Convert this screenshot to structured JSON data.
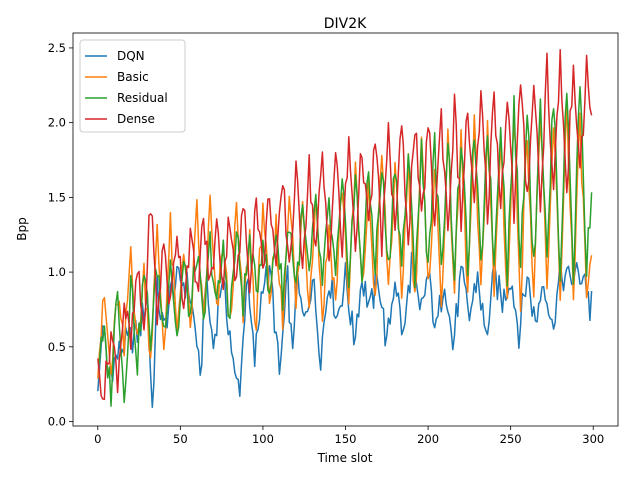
{
  "chart_data": {
    "type": "line",
    "title": "DIV2K",
    "xlabel": "Time slot",
    "ylabel": "Bpp",
    "xlim": [
      -15,
      315
    ],
    "ylim": [
      -0.03,
      2.6
    ],
    "xticks": [
      0,
      50,
      100,
      150,
      200,
      250,
      300
    ],
    "yticks": [
      0.0,
      0.5,
      1.0,
      1.5,
      2.0,
      2.5
    ],
    "xtick_labels": [
      "0",
      "50",
      "100",
      "150",
      "200",
      "250",
      "300"
    ],
    "ytick_labels": [
      "0.0",
      "0.5",
      "1.0",
      "1.5",
      "2.0",
      "2.5"
    ],
    "grid": false,
    "legend_position": "top-left",
    "points_per_series": 300,
    "series": [
      {
        "name": "DQN",
        "color": "#1f77b4",
        "x": [
          0,
          3,
          6,
          10,
          15,
          20,
          25,
          30,
          33,
          36,
          40,
          45,
          50,
          55,
          60,
          62,
          65,
          70,
          75,
          80,
          83,
          86,
          88,
          90,
          95,
          100,
          105,
          110,
          115,
          118,
          120,
          125,
          130,
          135,
          140,
          145,
          150,
          155,
          160,
          165,
          170,
          175,
          180,
          185,
          190,
          195,
          200,
          205,
          210,
          215,
          220,
          225,
          230,
          235,
          240,
          245,
          250,
          255,
          260,
          265,
          270,
          275,
          280,
          285,
          290,
          295,
          298,
          300
        ],
        "y": [
          0.15,
          0.69,
          0.3,
          0.4,
          0.5,
          0.55,
          0.6,
          0.85,
          0.08,
          0.87,
          0.6,
          0.9,
          0.95,
          0.9,
          0.55,
          0.21,
          0.96,
          0.5,
          0.96,
          0.6,
          0.27,
          0.25,
          0.54,
          0.97,
          0.4,
          0.96,
          0.95,
          0.3,
          0.95,
          0.4,
          0.96,
          0.65,
          0.97,
          0.45,
          0.97,
          0.7,
          0.97,
          0.55,
          0.96,
          0.75,
          0.97,
          0.5,
          0.98,
          0.55,
          1.07,
          0.7,
          0.98,
          0.6,
          0.98,
          0.5,
          0.98,
          0.7,
          0.98,
          0.55,
          0.98,
          0.8,
          0.98,
          0.6,
          0.98,
          0.65,
          0.98,
          0.62,
          0.98,
          0.95,
          0.98,
          0.98,
          0.74,
          0.98
        ]
      },
      {
        "name": "Basic",
        "color": "#ff7f0e",
        "x": [
          0,
          4,
          8,
          12,
          16,
          20,
          24,
          28,
          32,
          36,
          40,
          44,
          48,
          52,
          56,
          60,
          64,
          68,
          72,
          76,
          80,
          84,
          88,
          92,
          96,
          100,
          104,
          108,
          112,
          116,
          120,
          124,
          128,
          132,
          136,
          140,
          144,
          148,
          152,
          156,
          160,
          164,
          168,
          172,
          176,
          180,
          184,
          188,
          192,
          196,
          200,
          204,
          208,
          212,
          216,
          220,
          224,
          228,
          232,
          236,
          240,
          244,
          248,
          252,
          256,
          260,
          264,
          268,
          272,
          276,
          280,
          284,
          288,
          292,
          296,
          300
        ],
        "y": [
          0.38,
          0.82,
          0.3,
          0.85,
          0.45,
          1.17,
          0.5,
          1.0,
          0.45,
          1.25,
          0.5,
          1.3,
          0.55,
          1.2,
          0.6,
          1.4,
          0.65,
          1.45,
          0.7,
          1.2,
          0.62,
          1.4,
          0.7,
          1.25,
          0.62,
          1.5,
          0.7,
          1.3,
          0.65,
          1.6,
          0.75,
          1.45,
          0.8,
          1.55,
          0.7,
          1.3,
          0.8,
          1.6,
          0.82,
          1.7,
          0.85,
          1.55,
          0.8,
          1.8,
          0.9,
          1.65,
          0.85,
          1.75,
          0.8,
          1.9,
          0.85,
          1.7,
          0.82,
          1.85,
          0.9,
          1.9,
          0.85,
          1.95,
          0.82,
          2.0,
          0.85,
          1.9,
          0.82,
          2.05,
          0.82,
          1.95,
          0.85,
          2.1,
          0.82,
          2.0,
          0.85,
          2.15,
          0.82,
          2.0,
          0.85,
          1.12
        ]
      },
      {
        "name": "Residual",
        "color": "#2ca02c",
        "x": [
          0,
          4,
          8,
          12,
          16,
          20,
          24,
          28,
          32,
          36,
          40,
          44,
          48,
          52,
          56,
          60,
          64,
          68,
          72,
          76,
          80,
          84,
          88,
          92,
          96,
          100,
          104,
          108,
          112,
          116,
          120,
          124,
          128,
          132,
          136,
          140,
          144,
          148,
          152,
          156,
          160,
          164,
          168,
          172,
          176,
          180,
          184,
          188,
          192,
          196,
          200,
          204,
          208,
          212,
          216,
          220,
          224,
          228,
          232,
          236,
          240,
          244,
          248,
          252,
          256,
          260,
          264,
          268,
          272,
          276,
          280,
          284,
          288,
          292,
          296,
          300
        ],
        "y": [
          0.4,
          0.55,
          0.2,
          0.95,
          0.14,
          0.95,
          0.4,
          1.0,
          0.55,
          1.05,
          0.6,
          1.1,
          0.55,
          1.05,
          0.7,
          1.15,
          0.62,
          1.2,
          0.75,
          1.15,
          0.7,
          1.25,
          0.8,
          1.2,
          0.85,
          1.25,
          0.8,
          1.3,
          0.85,
          1.35,
          0.9,
          1.4,
          0.95,
          1.45,
          0.9,
          1.45,
          0.95,
          1.55,
          1.0,
          1.6,
          1.0,
          1.65,
          1.05,
          1.7,
          1.0,
          1.75,
          1.05,
          1.75,
          1.0,
          1.8,
          1.05,
          1.85,
          1.0,
          1.9,
          1.0,
          1.9,
          1.05,
          1.95,
          1.0,
          2.0,
          1.05,
          2.05,
          1.0,
          2.1,
          1.05,
          2.15,
          1.0,
          2.2,
          1.05,
          2.2,
          1.0,
          2.25,
          1.0,
          2.3,
          1.0,
          1.8
        ]
      },
      {
        "name": "Dense",
        "color": "#d62728",
        "x": [
          0,
          4,
          8,
          12,
          16,
          20,
          24,
          28,
          32,
          36,
          40,
          44,
          48,
          52,
          56,
          60,
          64,
          68,
          72,
          76,
          80,
          84,
          88,
          92,
          96,
          100,
          104,
          108,
          112,
          116,
          120,
          124,
          128,
          132,
          136,
          140,
          144,
          148,
          152,
          156,
          160,
          164,
          168,
          172,
          176,
          180,
          184,
          188,
          192,
          196,
          200,
          204,
          208,
          212,
          216,
          220,
          224,
          228,
          232,
          236,
          240,
          244,
          248,
          252,
          256,
          260,
          264,
          268,
          272,
          276,
          280,
          284,
          288,
          292,
          296,
          300
        ],
        "y": [
          0.35,
          0.2,
          0.6,
          0.3,
          0.8,
          0.5,
          1.0,
          0.6,
          1.5,
          0.7,
          1.2,
          0.75,
          1.3,
          0.8,
          1.25,
          0.85,
          1.35,
          0.9,
          1.3,
          0.95,
          1.4,
          0.9,
          1.45,
          0.95,
          1.5,
          1.0,
          1.55,
          1.0,
          1.6,
          1.05,
          1.65,
          1.1,
          1.7,
          1.15,
          1.75,
          1.1,
          1.8,
          1.15,
          1.85,
          1.2,
          1.85,
          1.25,
          1.9,
          1.2,
          1.9,
          1.3,
          1.95,
          1.25,
          2.0,
          1.3,
          2.0,
          1.35,
          2.05,
          1.3,
          2.1,
          1.35,
          2.1,
          1.4,
          2.15,
          1.4,
          2.2,
          1.45,
          2.2,
          1.4,
          2.25,
          1.5,
          2.3,
          1.45,
          2.4,
          1.5,
          2.45,
          1.5,
          2.45,
          1.6,
          2.4,
          1.85
        ]
      }
    ]
  }
}
